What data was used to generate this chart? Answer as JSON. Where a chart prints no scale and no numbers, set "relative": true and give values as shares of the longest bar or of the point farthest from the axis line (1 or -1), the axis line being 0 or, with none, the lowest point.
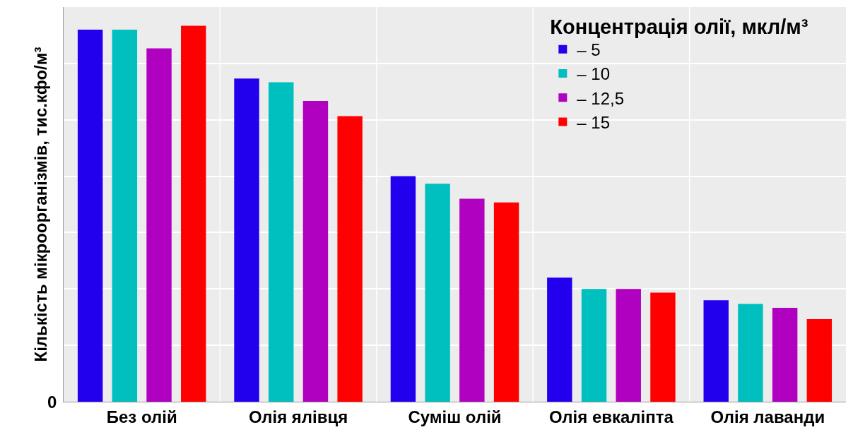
{
  "chart_data": {
    "type": "bar",
    "relative": true,
    "ylabel": "Кількість мікроорганізмів, тис.кфо/м³",
    "legend_title": "Концентрація олії, мкл/м³",
    "legend": "top right",
    "grid": true,
    "categories": [
      "Без олій",
      "Олія ялівця",
      "Суміш олій",
      "Олія евкаліпта",
      "Олія лаванди"
    ],
    "annotations": [
      "0"
    ],
    "series": [
      {
        "name": "– 5",
        "color": "#2200ee",
        "values": [
          0.99,
          0.86,
          0.6,
          0.33,
          0.27
        ]
      },
      {
        "name": "– 10",
        "color": "#00bfbf",
        "values": [
          0.99,
          0.85,
          0.58,
          0.3,
          0.26
        ]
      },
      {
        "name": "– 12,5",
        "color": "#b000c0",
        "values": [
          0.94,
          0.8,
          0.54,
          0.3,
          0.25
        ]
      },
      {
        "name": "– 15",
        "color": "#ff0000",
        "values": [
          1,
          0.76,
          0.53,
          0.29,
          0.22
        ]
      }
    ]
  }
}
